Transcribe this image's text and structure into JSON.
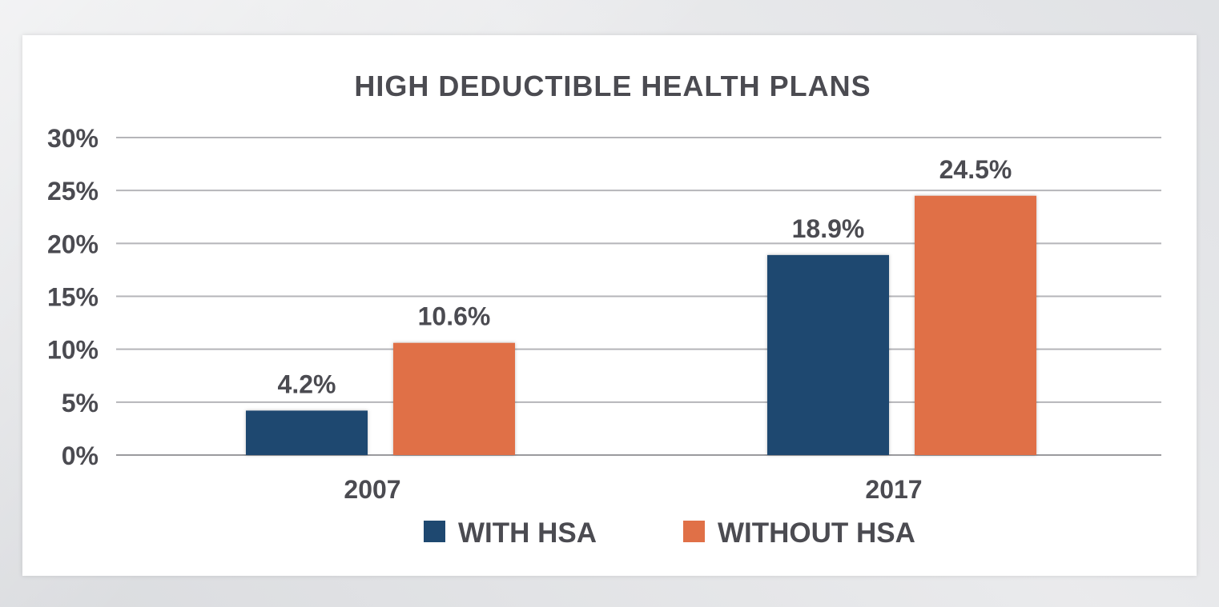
{
  "chart_data": {
    "type": "bar",
    "title": "HIGH DEDUCTIBLE HEALTH PLANS",
    "categories": [
      "2007",
      "2017"
    ],
    "series": [
      {
        "name": "WITH HSA",
        "values": [
          4.2,
          18.9
        ],
        "labels": [
          "4.2%",
          "18.9%"
        ],
        "color": "#1e4870"
      },
      {
        "name": "WITHOUT HSA",
        "values": [
          10.6,
          24.5
        ],
        "labels": [
          "10.6%",
          "24.5%"
        ],
        "color": "#e07047"
      }
    ],
    "ylim": [
      0,
      30
    ],
    "yticks": [
      0,
      5,
      10,
      15,
      20,
      25,
      30
    ],
    "ytick_labels": [
      "0%",
      "5%",
      "10%",
      "15%",
      "20%",
      "25%",
      "30%"
    ],
    "grid": true,
    "legend_position": "bottom"
  }
}
